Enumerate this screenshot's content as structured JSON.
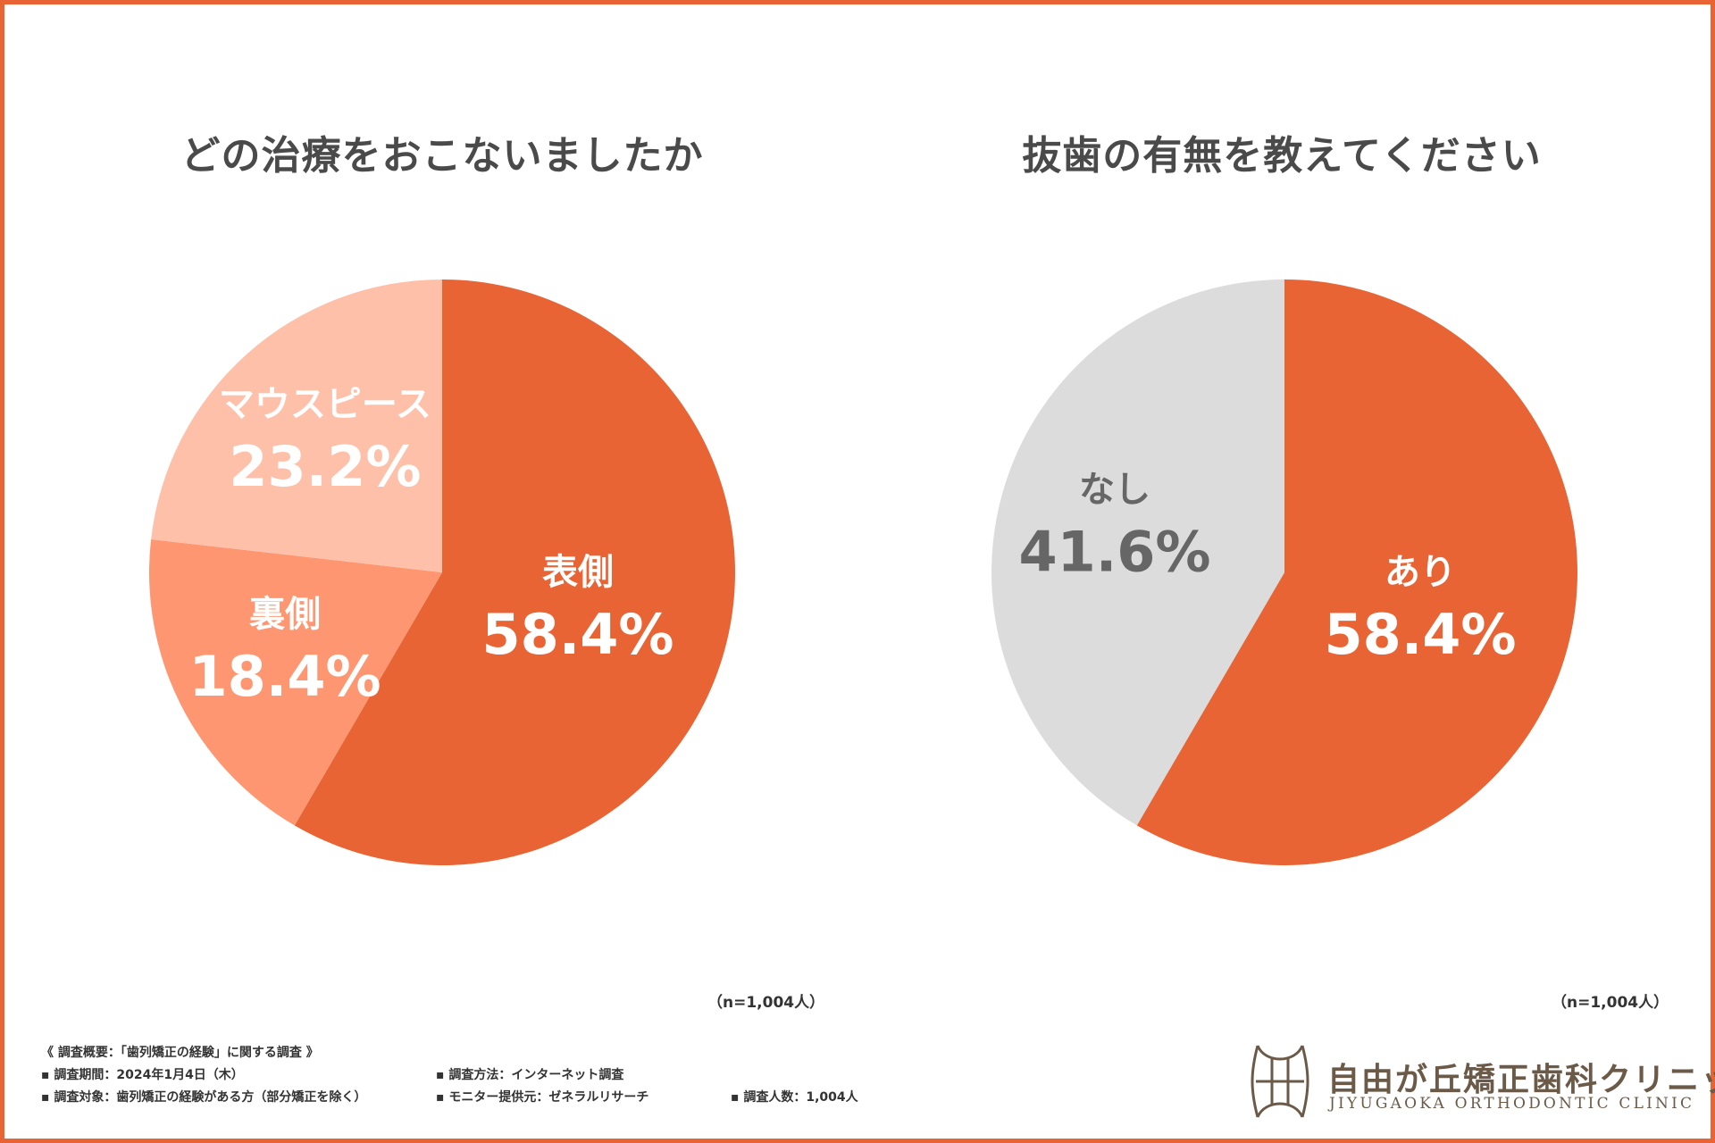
{
  "chart_data": [
    {
      "type": "pie",
      "title": "どの治療をおこないましたか",
      "categories": [
        "表側",
        "裏側",
        "マウスピース"
      ],
      "values": [
        58.4,
        18.4,
        23.2
      ],
      "value_labels": [
        "58.4%",
        "18.4%",
        "23.2%"
      ],
      "colors": [
        "#e86435",
        "#fe9771",
        "#ffc0a9"
      ],
      "label_colors": [
        "#ffffff",
        "#ffffff",
        "#ffffff"
      ],
      "note": "（n=1,004人）"
    },
    {
      "type": "pie",
      "title": "抜歯の有無を教えてください",
      "categories": [
        "あり",
        "なし"
      ],
      "values": [
        58.4,
        41.6
      ],
      "value_labels": [
        "58.4%",
        "41.6%"
      ],
      "colors": [
        "#e86435",
        "#dcdcdc"
      ],
      "label_colors": [
        "#ffffff",
        "#666666"
      ],
      "note": "（n=1,004人）"
    }
  ],
  "footer": {
    "heading": "《 調査概要：「歯列矯正の経験」に関する調査 》",
    "period": "▪ 調査期間：2024年1月4日（木）",
    "method": "▪ 調査方法：インターネット調査",
    "target": "▪ 調査対象：歯列矯正の経験がある方（部分矯正を除く）",
    "provider": "▪ モニター提供元：ゼネラルリサーチ",
    "count": "▪ 調査人数：1,004人"
  },
  "logo": {
    "name": "自由が丘矯正歯科クリニック",
    "sub": "JIYUGAOKA ORTHODONTIC CLINIC"
  },
  "colors": {
    "accent": "#e86435",
    "text": "#4a4a4a",
    "logo": "#6b5a48"
  }
}
